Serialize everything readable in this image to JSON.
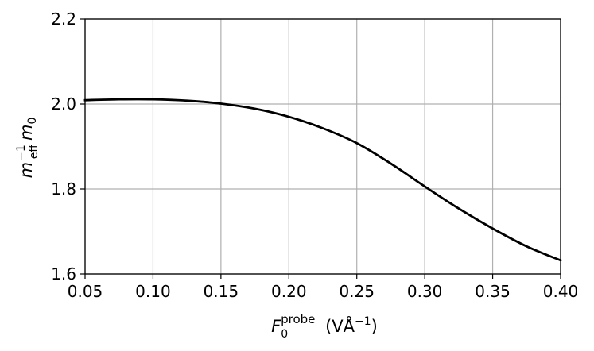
{
  "chart_data": {
    "type": "line",
    "title": "",
    "xlabel": "F_0^probe (VÅ^-1)",
    "ylabel": "m_eff^-1 m_0",
    "xlim": [
      0.05,
      0.4
    ],
    "ylim": [
      1.6,
      2.2
    ],
    "xticks": [
      0.05,
      0.1,
      0.15,
      0.2,
      0.25,
      0.3,
      0.35,
      0.4
    ],
    "xtick_labels": [
      "0.05",
      "0.10",
      "0.15",
      "0.20",
      "0.25",
      "0.30",
      "0.35",
      "0.40"
    ],
    "yticks": [
      1.6,
      1.8,
      2.0,
      2.2
    ],
    "ytick_labels": [
      "1.6",
      "1.8",
      "2.0",
      "2.2"
    ],
    "grid": true,
    "series": [
      {
        "color": "#000000",
        "x": [
          0.05,
          0.075,
          0.1,
          0.125,
          0.15,
          0.175,
          0.2,
          0.225,
          0.25,
          0.275,
          0.3,
          0.325,
          0.35,
          0.375,
          0.4
        ],
        "y": [
          2.009,
          2.011,
          2.011,
          2.008,
          2.001,
          1.989,
          1.97,
          1.943,
          1.908,
          1.86,
          1.806,
          1.754,
          1.707,
          1.665,
          1.632
        ]
      }
    ]
  }
}
